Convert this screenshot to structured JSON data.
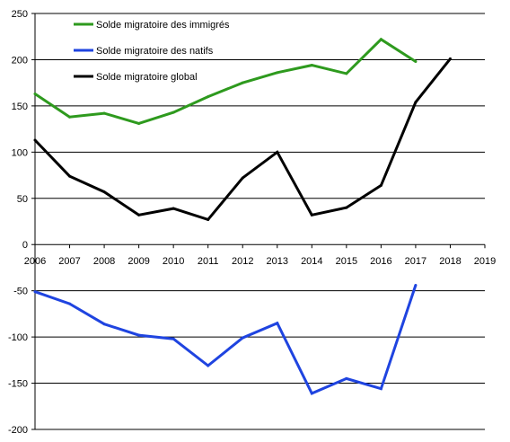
{
  "chart_data": {
    "type": "line",
    "title": "",
    "xlabel": "",
    "ylabel": "",
    "xlim": [
      2006,
      2019
    ],
    "ylim": [
      -200,
      250
    ],
    "x_ticks": [
      "2006",
      "2007",
      "2008",
      "2009",
      "2010",
      "2011",
      "2012",
      "2013",
      "2014",
      "2015",
      "2016",
      "2017",
      "2018",
      "2019"
    ],
    "y_ticks": [
      "250",
      "200",
      "150",
      "100",
      "50",
      "0",
      "-50",
      "-100",
      "-150",
      "-200"
    ],
    "grid": "horizontal",
    "legend_position": "top-left",
    "series": [
      {
        "name": "Solde migratoire des immigrés",
        "color": "#2e9a1e",
        "x": [
          2006,
          2007,
          2008,
          2009,
          2010,
          2011,
          2012,
          2013,
          2014,
          2015,
          2016,
          2017
        ],
        "values": [
          163,
          138,
          142,
          131,
          143,
          160,
          175,
          186,
          194,
          185,
          222,
          198
        ]
      },
      {
        "name": "Solde migratoire des natifs",
        "color": "#1f44e0",
        "x": [
          2006,
          2007,
          2008,
          2009,
          2010,
          2011,
          2012,
          2013,
          2014,
          2015,
          2016,
          2017
        ],
        "values": [
          -51,
          -64,
          -86,
          -98,
          -102,
          -131,
          -101,
          -85,
          -161,
          -145,
          -156,
          -44
        ]
      },
      {
        "name": "Solde migratoire global",
        "color": "#000000",
        "x": [
          2006,
          2007,
          2008,
          2009,
          2010,
          2011,
          2012,
          2013,
          2014,
          2015,
          2016,
          2017,
          2018
        ],
        "values": [
          113,
          74,
          57,
          32,
          39,
          27,
          72,
          100,
          32,
          40,
          64,
          154,
          201
        ]
      }
    ]
  }
}
